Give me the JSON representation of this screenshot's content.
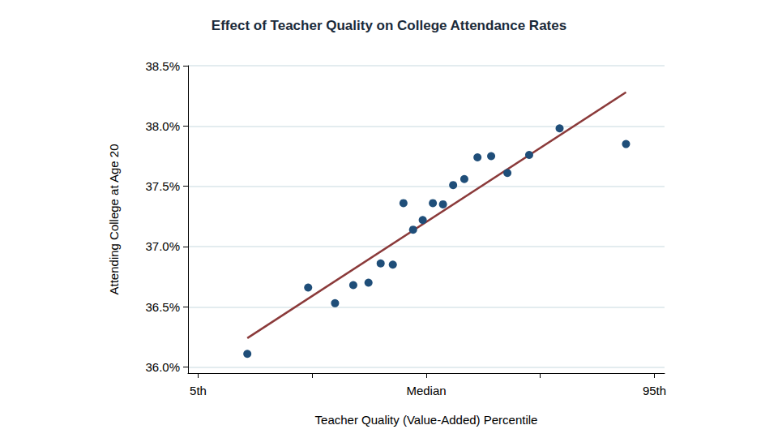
{
  "chart_data": {
    "type": "scatter",
    "title": "Effect of Teacher Quality on College Attendance Rates",
    "x_label": "Teacher Quality (Value-Added) Percentile",
    "y_label": "Attending College at Age 20",
    "series": [
      {
        "type": "scatter",
        "marker": "circle",
        "color": "#1f4e79",
        "x": [
          14.7,
          26.7,
          32.0,
          35.6,
          38.6,
          41.0,
          43.4,
          45.5,
          47.4,
          49.3,
          51.3,
          53.3,
          55.3,
          57.5,
          60.1,
          62.8,
          66.0,
          70.3,
          76.3,
          89.4
        ],
        "values": [
          36.11,
          36.66,
          36.53,
          36.68,
          36.7,
          36.86,
          36.85,
          37.36,
          37.14,
          37.22,
          37.36,
          37.35,
          37.51,
          37.56,
          37.74,
          37.75,
          37.61,
          37.76,
          37.98,
          37.85
        ]
      },
      {
        "type": "line",
        "line_style": "solid",
        "color": "#8b3a3a",
        "x": [
          14.7,
          89.4
        ],
        "values": [
          36.24,
          38.28
        ]
      }
    ],
    "xlim": [
      3,
      97
    ],
    "xticks": [
      {
        "value": 5,
        "label": "5th"
      },
      {
        "value": 27.5,
        "label": null
      },
      {
        "value": 50,
        "label": "Median"
      },
      {
        "value": 72.5,
        "label": null
      },
      {
        "value": 95,
        "label": "95th"
      }
    ],
    "ylim": [
      35.95,
      38.5
    ],
    "yticks": [
      {
        "value": 36.0,
        "label": "36.0%"
      },
      {
        "value": 36.5,
        "label": "36.5%"
      },
      {
        "value": 37.0,
        "label": "37.0%"
      },
      {
        "value": 37.5,
        "label": "37.5%"
      },
      {
        "value": 38.0,
        "label": "38.0%"
      },
      {
        "value": 38.5,
        "label": "38.5%"
      }
    ],
    "grid": true
  }
}
